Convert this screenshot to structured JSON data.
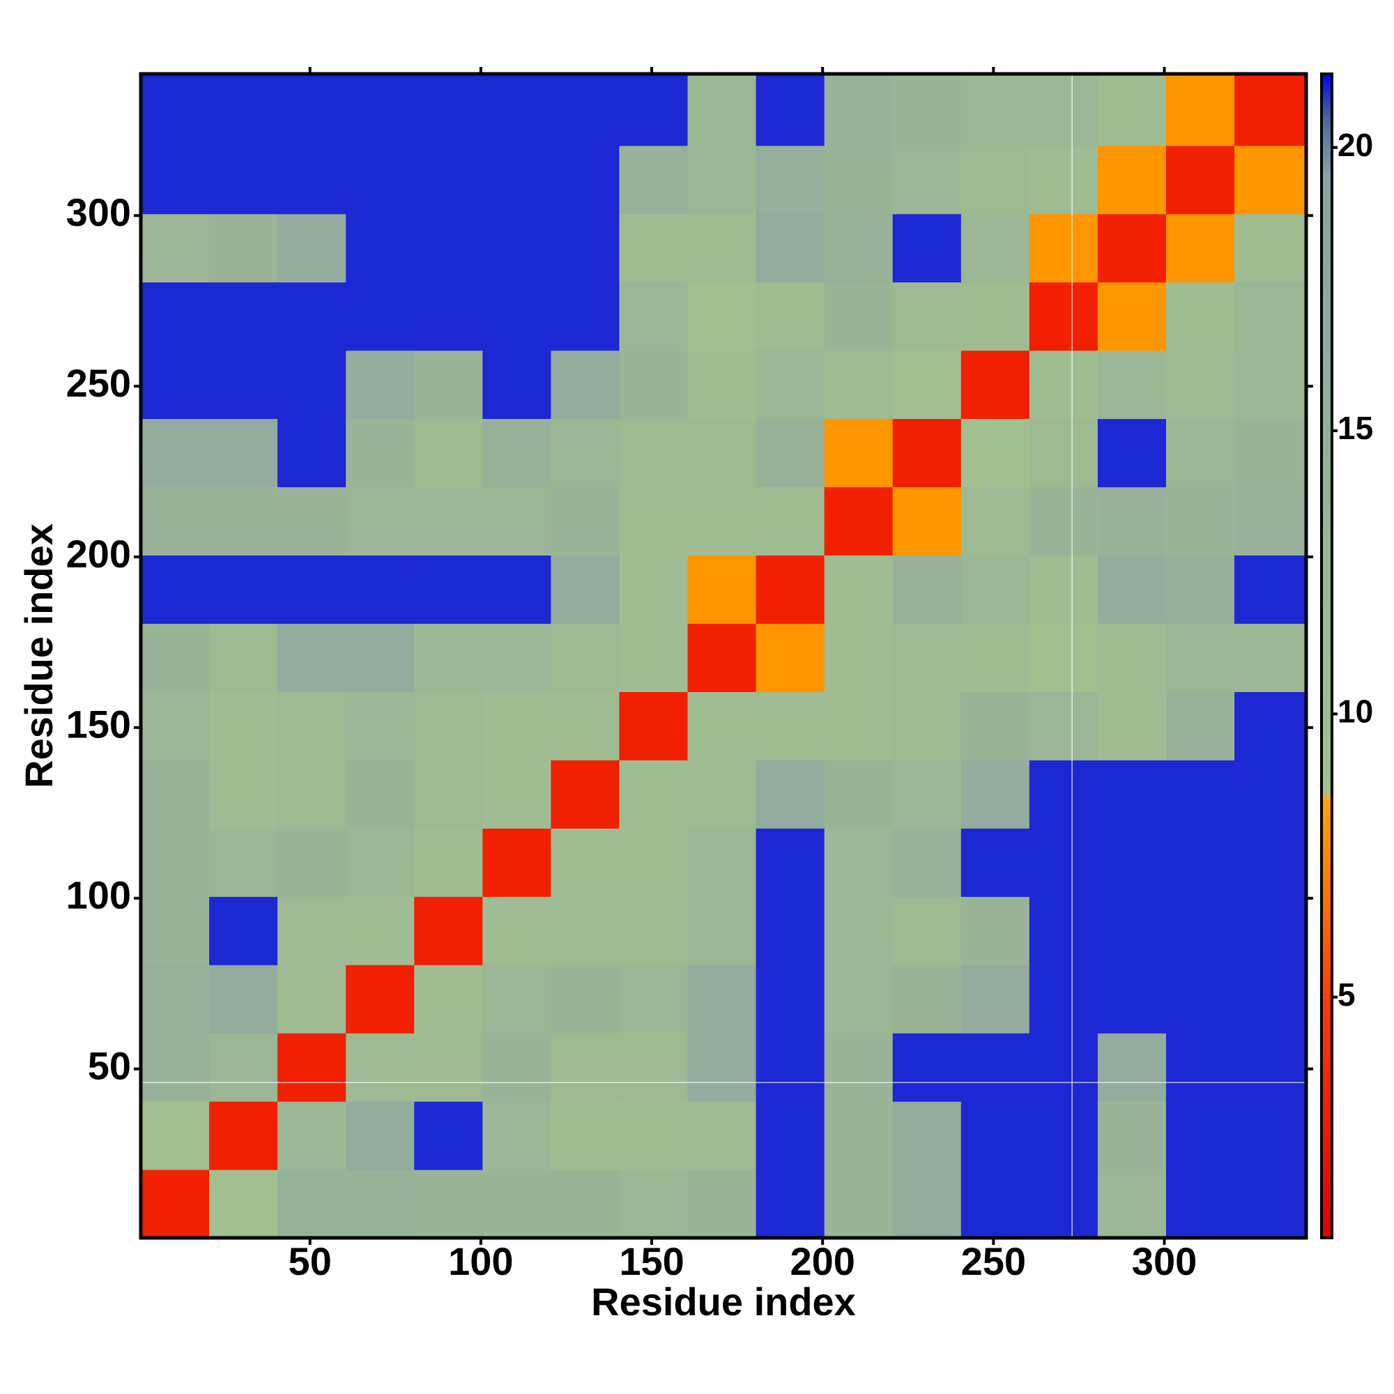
{
  "chart_data": {
    "type": "heatmap",
    "x_label": "Residue index",
    "y_label": "Residue index",
    "xbins": [
      0.5,
      20.5,
      40.5,
      60.5,
      80.5,
      100.5,
      120.5,
      140.5,
      160.5,
      180.5,
      200.5,
      220.5,
      240.5,
      260.5,
      280.5,
      300.5,
      320.5,
      341.5
    ],
    "ybins": [
      0.5,
      20.5,
      40.5,
      60.5,
      80.5,
      100.5,
      120.5,
      140.5,
      160.5,
      180.5,
      200.5,
      220.5,
      240.5,
      260.5,
      280.5,
      300.5,
      320.5,
      341.5
    ],
    "z": [
      [
        3,
        9,
        14,
        14,
        13,
        13,
        13,
        12,
        13,
        21,
        13,
        16,
        21,
        21,
        12,
        21,
        21
      ],
      [
        9,
        3,
        12,
        16,
        21,
        12,
        10,
        10,
        11,
        21,
        13,
        16,
        21,
        21,
        13,
        21,
        21
      ],
      [
        14,
        12,
        3,
        11,
        11,
        13,
        11,
        11,
        16,
        21,
        13,
        21,
        21,
        21,
        16,
        21,
        21
      ],
      [
        14,
        16,
        11,
        3,
        10,
        12,
        13,
        12,
        16,
        21,
        12,
        13,
        16,
        21,
        21,
        21,
        21
      ],
      [
        13,
        21,
        11,
        10,
        3,
        10,
        11,
        11,
        12,
        21,
        12,
        11,
        13,
        21,
        21,
        21,
        21
      ],
      [
        13,
        12,
        13,
        12,
        10,
        3,
        10,
        10,
        12,
        21,
        12,
        14,
        21,
        21,
        21,
        21,
        21
      ],
      [
        13,
        10,
        11,
        13,
        11,
        10,
        3,
        10,
        11,
        16,
        13,
        12,
        16,
        21,
        21,
        21,
        21
      ],
      [
        12,
        10,
        11,
        12,
        11,
        10,
        10,
        3,
        10,
        10,
        10,
        11,
        13,
        12,
        10,
        14,
        21
      ],
      [
        13,
        11,
        16,
        16,
        12,
        12,
        11,
        10,
        3,
        8,
        10,
        11,
        10,
        9,
        10,
        12,
        12
      ],
      [
        21,
        21,
        21,
        21,
        21,
        21,
        16,
        10,
        8,
        3,
        10,
        14,
        12,
        10,
        16,
        15,
        21
      ],
      [
        13,
        13,
        13,
        12,
        12,
        12,
        13,
        10,
        10,
        10,
        3,
        8,
        11,
        13,
        14,
        13,
        14
      ],
      [
        16,
        16,
        21,
        13,
        11,
        14,
        12,
        11,
        11,
        14,
        8,
        3,
        9,
        11,
        21,
        12,
        13
      ],
      [
        21,
        21,
        21,
        16,
        13,
        21,
        16,
        13,
        10,
        12,
        11,
        9,
        3,
        10,
        12,
        11,
        12
      ],
      [
        21,
        21,
        21,
        21,
        21,
        21,
        21,
        12,
        9,
        10,
        13,
        11,
        10,
        3,
        8,
        10,
        12
      ],
      [
        12,
        13,
        16,
        21,
        21,
        21,
        21,
        10,
        10,
        16,
        14,
        21,
        12,
        8,
        3,
        8,
        10
      ],
      [
        21,
        21,
        21,
        21,
        21,
        21,
        21,
        14,
        12,
        15,
        13,
        12,
        11,
        10,
        8,
        3,
        8
      ],
      [
        21,
        21,
        21,
        21,
        21,
        21,
        21,
        21,
        12,
        21,
        14,
        13,
        12,
        12,
        10,
        8,
        3
      ]
    ],
    "xlim": [
      0.5,
      341.5
    ],
    "ylim": [
      0.5,
      341.5
    ],
    "xticks": [
      50,
      100,
      150,
      200,
      250,
      300
    ],
    "yticks": [
      50,
      100,
      150,
      200,
      250,
      300
    ],
    "zlim": [
      0.75,
      21.3
    ],
    "zticks": [
      5,
      10,
      15,
      20
    ],
    "colorscale": [
      [
        0.75,
        "#e00000"
      ],
      [
        5,
        "#ff3c00"
      ],
      [
        8.5,
        "#ffa500"
      ],
      [
        8.6,
        "#a3c08f"
      ],
      [
        19.5,
        "#8aa3a3"
      ],
      [
        20.5,
        "#4a6a9a"
      ],
      [
        21.3,
        "#0000f5"
      ]
    ],
    "vline": 273,
    "hline": 46
  }
}
